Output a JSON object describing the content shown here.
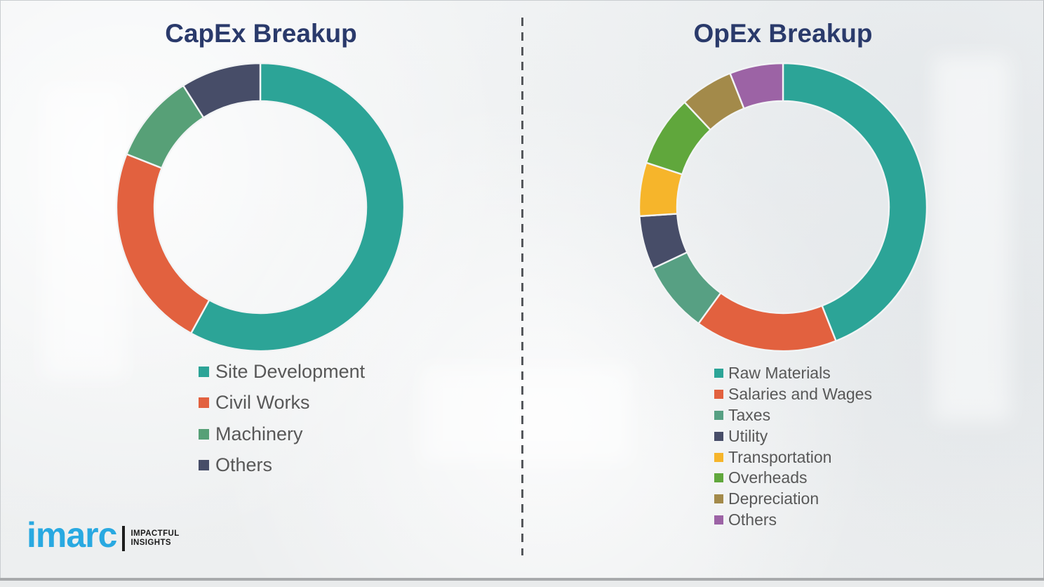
{
  "page": {
    "background_color": "#eef0f1",
    "frame_border_color": "#c9cdd0",
    "bottom_bar_color": "#a8aaac",
    "divider_style": "vertical-dashed",
    "divider_color": "#55585c"
  },
  "branding": {
    "logo_text": "imarc",
    "logo_color": "#29a9e1",
    "tagline_line1": "IMPACTFUL",
    "tagline_line2": "INSIGHTS"
  },
  "chart_data": [
    {
      "type": "donut",
      "title": "CapEx Breakup",
      "title_color": "#2a3a6b",
      "direction": "clockwise",
      "start_angle_deg": 0,
      "units": "percent (estimated from arc angles; no data labels shown)",
      "legend_position": "below-chart-left",
      "segments": [
        {
          "label": "Site Development",
          "value": 58,
          "color": "#2ca497"
        },
        {
          "label": "Civil Works",
          "value": 23,
          "color": "#e2613f"
        },
        {
          "label": "Machinery",
          "value": 10,
          "color": "#57a077"
        },
        {
          "label": "Others",
          "value": 9,
          "color": "#474d68"
        }
      ]
    },
    {
      "type": "donut",
      "title": "OpEx Breakup",
      "title_color": "#2a3a6b",
      "direction": "clockwise",
      "start_angle_deg": 0,
      "units": "percent (estimated from arc angles; no data labels shown)",
      "legend_position": "below-chart-left",
      "segments": [
        {
          "label": "Raw Materials",
          "value": 44,
          "color": "#2ca497"
        },
        {
          "label": "Salaries and Wages",
          "value": 16,
          "color": "#e2613f"
        },
        {
          "label": "Taxes",
          "value": 8,
          "color": "#57a083"
        },
        {
          "label": "Utility",
          "value": 6,
          "color": "#474d68"
        },
        {
          "label": "Transportation",
          "value": 6,
          "color": "#f6b52b"
        },
        {
          "label": "Overheads",
          "value": 8,
          "color": "#60a73c"
        },
        {
          "label": "Depreciation",
          "value": 6,
          "color": "#a38a4a"
        },
        {
          "label": "Others",
          "value": 6,
          "color": "#9c63a5"
        }
      ]
    }
  ]
}
